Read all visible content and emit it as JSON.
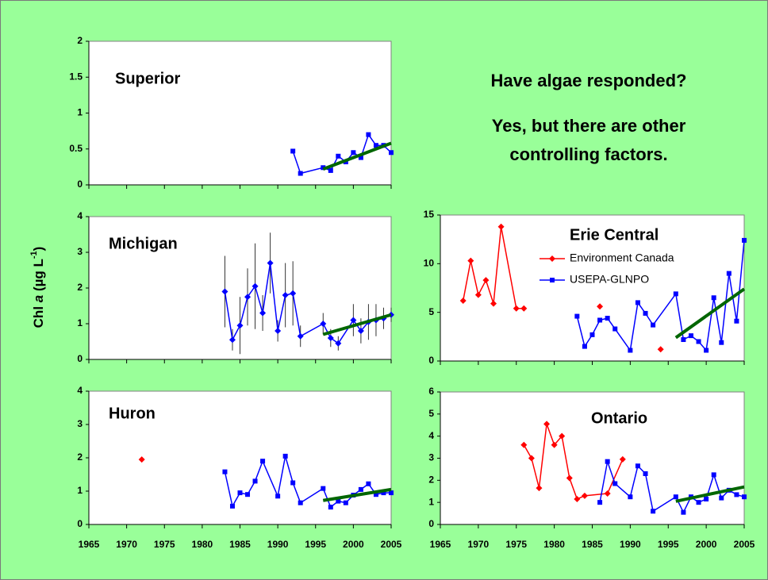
{
  "heading": [
    "Have algae responded?",
    "Yes, but there are other",
    "controlling factors."
  ],
  "ylabel": [
    "Chl ",
    "a",
    " (µg L",
    "-1",
    ")"
  ],
  "chart_data": [
    {
      "type": "line",
      "title": "Superior",
      "xlim": [
        1965,
        2005
      ],
      "xticks": [
        1965,
        1970,
        1975,
        1980,
        1985,
        1990,
        1995,
        2000,
        2005
      ],
      "xtick_labels": false,
      "ylim": [
        0,
        2
      ],
      "yticks": [
        0,
        {
          "value": 0.5,
          "label": "0.5"
        },
        1,
        {
          "value": 1.5,
          "label": "1.5"
        },
        2
      ],
      "series": [
        {
          "name": "USEPA-GLNPO",
          "color": "#0000ff",
          "marker": "square",
          "x": [
            1992,
            1993,
            1996,
            1997,
            1998,
            1999,
            2000,
            2001,
            2002,
            2003,
            2004,
            2005
          ],
          "values": [
            0.47,
            0.16,
            0.24,
            0.2,
            0.4,
            0.32,
            0.45,
            0.38,
            0.7,
            0.55,
            0.55,
            0.45
          ]
        },
        {
          "color": "#006600",
          "marker": "none",
          "x": [
            1996,
            2005
          ],
          "values": [
            0.22,
            0.58
          ]
        }
      ]
    },
    {
      "type": "line",
      "title": "Michigan",
      "xlim": [
        1965,
        2005
      ],
      "xticks": [
        1965,
        1970,
        1975,
        1980,
        1985,
        1990,
        1995,
        2000,
        2005
      ],
      "xtick_labels": false,
      "ylim": [
        0,
        4
      ],
      "yticks": [
        0,
        1,
        2,
        3,
        4
      ],
      "series": [
        {
          "name": "USEPA-GLNPO",
          "color": "#0000ff",
          "marker": "diamond",
          "x": [
            1983,
            1984,
            1985,
            1986,
            1987,
            1988,
            1989,
            1990,
            1991,
            1992,
            1993,
            1996,
            1997,
            1998,
            2000,
            2001,
            2002,
            2003,
            2004,
            2005
          ],
          "values": [
            1.9,
            0.55,
            0.95,
            1.75,
            2.05,
            1.3,
            2.7,
            0.8,
            1.8,
            1.85,
            0.65,
            1.0,
            0.6,
            0.45,
            1.1,
            0.8,
            1.05,
            1.1,
            1.15,
            1.25
          ],
          "errors": [
            1.0,
            0.3,
            0.8,
            0.8,
            1.2,
            0.5,
            0.85,
            0.3,
            0.9,
            0.9,
            0.3,
            0.3,
            0.25,
            0.2,
            0.45,
            0.35,
            0.5,
            0.45,
            0.3,
            0.2
          ]
        },
        {
          "color": "#006600",
          "marker": "none",
          "x": [
            1996,
            2005
          ],
          "values": [
            0.7,
            1.25
          ]
        }
      ]
    },
    {
      "type": "line",
      "title": "Huron",
      "xlim": [
        1965,
        2005
      ],
      "xticks": [
        1965,
        1970,
        1975,
        1980,
        1985,
        1990,
        1995,
        2000,
        2005
      ],
      "xtick_labels": true,
      "ylim": [
        0,
        4
      ],
      "yticks": [
        0,
        1,
        2,
        3,
        4
      ],
      "series": [
        {
          "name": "Environment Canada",
          "color": "#ff0000",
          "marker": "diamond",
          "x": [
            1972
          ],
          "values": [
            1.95
          ]
        },
        {
          "name": "USEPA-GLNPO",
          "color": "#0000ff",
          "marker": "square",
          "x": [
            1983,
            1984,
            1985,
            1986,
            1987,
            1988,
            1990,
            1991,
            1992,
            1993,
            1996,
            1997,
            1998,
            1999,
            2000,
            2001,
            2002,
            2003,
            2004,
            2005
          ],
          "values": [
            1.58,
            0.55,
            0.95,
            0.9,
            1.3,
            1.9,
            0.85,
            2.05,
            1.25,
            0.65,
            1.08,
            0.52,
            0.7,
            0.65,
            0.88,
            1.05,
            1.22,
            0.9,
            0.95,
            0.95
          ]
        },
        {
          "color": "#006600",
          "marker": "none",
          "x": [
            1996,
            2005
          ],
          "values": [
            0.72,
            1.05
          ]
        }
      ]
    },
    {
      "type": "line",
      "title": "Erie Central",
      "xlim": [
        1965,
        2005
      ],
      "xticks": [
        1965,
        1970,
        1975,
        1980,
        1985,
        1990,
        1995,
        2000,
        2005
      ],
      "xtick_labels": false,
      "legend": true,
      "ylim": [
        0,
        15
      ],
      "yticks": [
        0,
        5,
        10,
        15
      ],
      "series": [
        {
          "name": "Environment Canada",
          "color": "#ff0000",
          "marker": "diamond",
          "x": [
            1968,
            1969,
            1970,
            1971,
            1972,
            1973,
            1975,
            1976,
            null,
            1986,
            null,
            1994
          ],
          "values": [
            6.2,
            10.3,
            6.8,
            8.3,
            5.9,
            13.8,
            5.4,
            5.4,
            null,
            5.6,
            null,
            1.2
          ]
        },
        {
          "name": "USEPA-GLNPO",
          "color": "#0000ff",
          "marker": "square",
          "x": [
            1983,
            1984,
            1985,
            1986,
            1987,
            1988,
            1990,
            1991,
            1992,
            1993,
            1996,
            1997,
            1998,
            1999,
            2000,
            2001,
            2002,
            2003,
            2004,
            2005
          ],
          "values": [
            4.6,
            1.5,
            2.7,
            4.2,
            4.4,
            3.3,
            1.1,
            6.0,
            4.9,
            3.7,
            6.9,
            2.2,
            2.6,
            2.0,
            1.1,
            6.5,
            1.9,
            9.0,
            4.1,
            12.4
          ]
        },
        {
          "color": "#006600",
          "marker": "none",
          "x": [
            1996,
            2005
          ],
          "values": [
            2.4,
            7.4
          ]
        }
      ]
    },
    {
      "type": "line",
      "title": "Ontario",
      "xlim": [
        1965,
        2005
      ],
      "xticks": [
        1965,
        1970,
        1975,
        1980,
        1985,
        1990,
        1995,
        2000,
        2005
      ],
      "xtick_labels": true,
      "ylim": [
        0,
        6
      ],
      "yticks": [
        0,
        1,
        2,
        3,
        4,
        5,
        6
      ],
      "series": [
        {
          "name": "Environment Canada",
          "color": "#ff0000",
          "marker": "diamond",
          "x": [
            1976,
            1977,
            1978,
            1979,
            1980,
            1981,
            1982,
            1983,
            1984,
            1987,
            1989
          ],
          "values": [
            3.6,
            3.0,
            1.65,
            4.55,
            3.6,
            4.0,
            2.1,
            1.15,
            1.3,
            1.4,
            2.95
          ]
        },
        {
          "name": "USEPA-GLNPO",
          "color": "#0000ff",
          "marker": "square",
          "x": [
            1986,
            1987,
            1988,
            1990,
            1991,
            1992,
            1993,
            1996,
            1997,
            1998,
            1999,
            2000,
            2001,
            2002,
            2003,
            2004,
            2005
          ],
          "values": [
            1.0,
            2.85,
            1.85,
            1.25,
            2.65,
            2.3,
            0.6,
            1.25,
            0.55,
            1.25,
            1.0,
            1.15,
            2.25,
            1.2,
            1.55,
            1.35,
            1.25
          ]
        },
        {
          "color": "#006600",
          "marker": "none",
          "x": [
            1996,
            2005
          ],
          "values": [
            1.05,
            1.7
          ]
        }
      ]
    }
  ]
}
